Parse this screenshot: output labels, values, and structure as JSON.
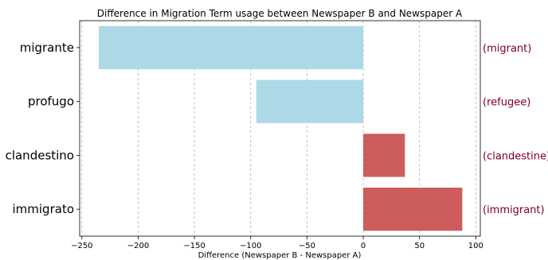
{
  "chart_data": {
    "type": "bar",
    "orientation": "horizontal",
    "title": "Difference in Migration Term usage between Newspaper B and Newspaper A",
    "xlabel": "Difference (Newspaper B - Newspaper A)",
    "ylabel": "",
    "xlim": [
      -252,
      104
    ],
    "x_ticks": [
      -250,
      -200,
      -150,
      -100,
      -50,
      0,
      50,
      100
    ],
    "grid": "x-dashed",
    "categories": [
      "migrante",
      "profugo",
      "clandestino",
      "immigrato"
    ],
    "values": [
      -235,
      -95,
      37,
      88
    ],
    "annotations": [
      "(migrant)",
      "(refugee)",
      "(clandestine)",
      "(immigrant)"
    ],
    "colors": {
      "negative": "#add8e6",
      "positive": "#cd5c5c",
      "annotation": "#800020"
    }
  }
}
